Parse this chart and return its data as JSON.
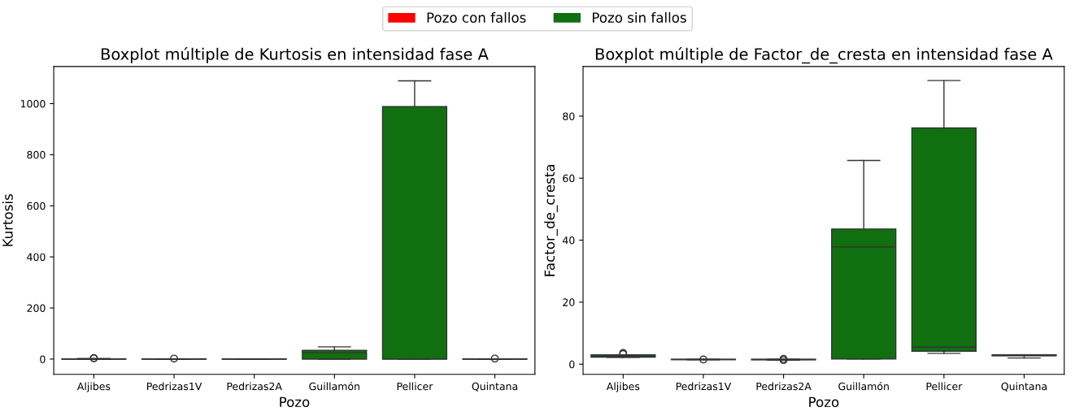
{
  "chart_data": [
    {
      "type": "box",
      "title": "Boxplot múltiple de Kurtosis en intensidad fase A",
      "xlabel": "Pozo",
      "ylabel": "Kurtosis",
      "categories": [
        "Aljibes",
        "Pedrizas1V",
        "Pedrizas2A",
        "Guillamón",
        "Pellicer",
        "Quintana"
      ],
      "ylim": [
        -60,
        1145
      ],
      "yticks": [
        0,
        200,
        400,
        600,
        800,
        1000
      ],
      "grid": false,
      "legend": "top",
      "series": [
        {
          "name": "Pozo con fallos",
          "color": "#ff0000",
          "boxes": [
            null,
            null,
            null,
            null,
            null,
            null
          ]
        },
        {
          "name": "Pozo sin fallos",
          "color": "#107010",
          "boxes": [
            {
              "low": -1,
              "q1": -0.5,
              "median": 0,
              "q3": 1,
              "high": 2,
              "outliers": [
                3,
                4
              ]
            },
            {
              "low": -1,
              "q1": -0.5,
              "median": 0,
              "q3": 0.5,
              "high": 1,
              "outliers": [
                2
              ]
            },
            {
              "low": -1,
              "q1": -0.5,
              "median": 0,
              "q3": 0.5,
              "high": 1
            },
            {
              "low": 0,
              "q1": 0,
              "median": 25,
              "q3": 34,
              "high": 48
            },
            {
              "low": 0,
              "q1": 0,
              "median": 1,
              "q3": 988,
              "high": 1089
            },
            {
              "low": -1,
              "q1": -0.5,
              "median": 0,
              "q3": 0.5,
              "high": 1,
              "outliers": [
                2
              ]
            }
          ]
        }
      ]
    },
    {
      "type": "box",
      "title": "Boxplot múltiple de Factor_de_cresta en intensidad fase A",
      "xlabel": "Pozo",
      "ylabel": "Factor_de_cresta",
      "categories": [
        "Aljibes",
        "Pedrizas1V",
        "Pedrizas2A",
        "Guillamón",
        "Pellicer",
        "Quintana"
      ],
      "ylim": [
        -3.3,
        96
      ],
      "yticks": [
        0,
        20,
        40,
        60,
        80
      ],
      "grid": false,
      "series": [
        {
          "color": "#107010",
          "boxes": [
            {
              "low": 2.2,
              "q1": 2.3,
              "median": 2.5,
              "q3": 3.0,
              "high": 3.0,
              "outliers": [
                3.3,
                3.6
              ]
            },
            {
              "low": 1.4,
              "q1": 1.5,
              "median": 1.5,
              "q3": 1.6,
              "high": 1.6,
              "outliers": [
                1.5
              ]
            },
            {
              "low": 1.3,
              "q1": 1.4,
              "median": 1.5,
              "q3": 1.6,
              "high": 1.6,
              "outliers": [
                1.3,
                1.7
              ]
            },
            {
              "low": 1.7,
              "q1": 1.7,
              "median": 37.8,
              "q3": 43.6,
              "high": 65.7
            },
            {
              "low": 3.5,
              "q1": 4.2,
              "median": 5.5,
              "q3": 76.2,
              "high": 91.5
            },
            {
              "low": 2.0,
              "q1": 2.7,
              "median": 2.8,
              "q3": 3.0,
              "high": 3.0
            }
          ]
        }
      ]
    }
  ]
}
